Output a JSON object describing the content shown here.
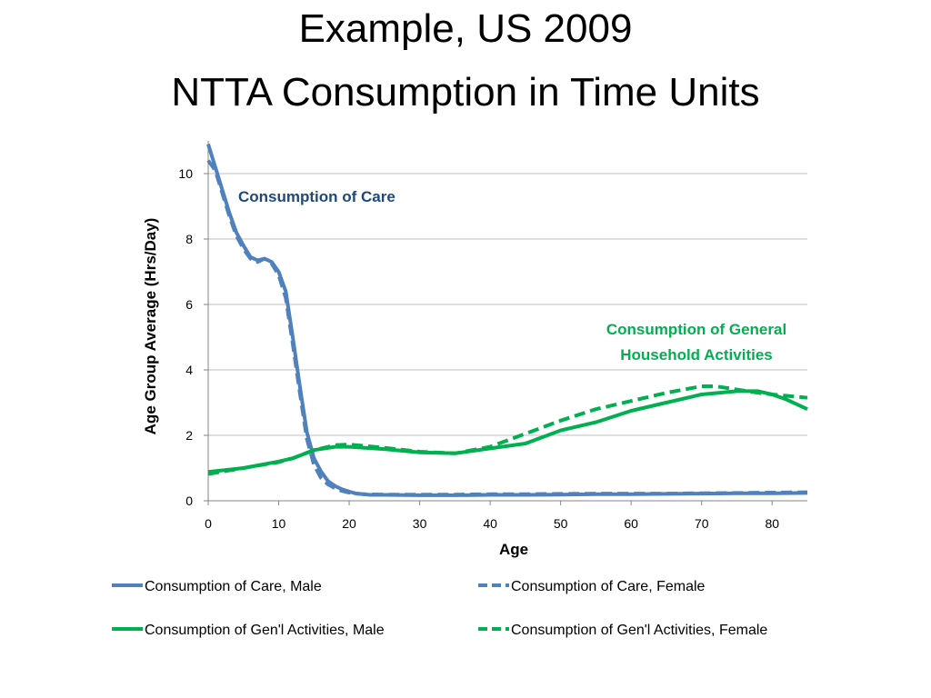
{
  "slide": {
    "title_line1": "Example, US 2009",
    "title_line2": "NTTA Consumption in Time Units"
  },
  "colors": {
    "care": "#4f81bd",
    "general": "#00b050",
    "care_annotation": "#1f497d",
    "general_annotation": "#00b050",
    "grid": "#bfbfbf"
  },
  "chart_data": {
    "type": "line",
    "xlabel": "Age",
    "ylabel": "Age Group Average (Hrs/Day)",
    "xlim": [
      0,
      85
    ],
    "ylim": [
      0,
      11
    ],
    "x_ticks": [
      0,
      10,
      20,
      30,
      40,
      50,
      60,
      70,
      80
    ],
    "y_ticks": [
      0,
      2,
      4,
      6,
      8,
      10
    ],
    "grid": "horizontal",
    "legend_position": "bottom",
    "annotations": [
      {
        "text": "Consumption of Care",
        "color": "care_annotation"
      },
      {
        "text": "Consumption of General",
        "color": "general_annotation"
      },
      {
        "text": "Household Activities",
        "color": "general_annotation"
      }
    ],
    "series": [
      {
        "name": "Consumption of Care, Male",
        "style": "solid",
        "color": "care",
        "points": [
          [
            0,
            10.9
          ],
          [
            1,
            10.2
          ],
          [
            2,
            9.5
          ],
          [
            3,
            8.8
          ],
          [
            4,
            8.2
          ],
          [
            5,
            7.8
          ],
          [
            6,
            7.45
          ],
          [
            7,
            7.35
          ],
          [
            8,
            7.4
          ],
          [
            9,
            7.3
          ],
          [
            10,
            7.0
          ],
          [
            11,
            6.4
          ],
          [
            12,
            5.0
          ],
          [
            13,
            3.5
          ],
          [
            14,
            2.1
          ],
          [
            15,
            1.3
          ],
          [
            16,
            0.9
          ],
          [
            17,
            0.6
          ],
          [
            18,
            0.45
          ],
          [
            19,
            0.35
          ],
          [
            20,
            0.28
          ],
          [
            21,
            0.22
          ],
          [
            22,
            0.2
          ],
          [
            23,
            0.18
          ],
          [
            25,
            0.18
          ],
          [
            30,
            0.17
          ],
          [
            35,
            0.17
          ],
          [
            40,
            0.18
          ],
          [
            45,
            0.18
          ],
          [
            50,
            0.19
          ],
          [
            55,
            0.2
          ],
          [
            60,
            0.2
          ],
          [
            65,
            0.21
          ],
          [
            70,
            0.22
          ],
          [
            75,
            0.23
          ],
          [
            80,
            0.23
          ],
          [
            85,
            0.24
          ]
        ]
      },
      {
        "name": "Consumption of Care, Female",
        "style": "dashed",
        "color": "care",
        "points": [
          [
            0,
            10.4
          ],
          [
            1,
            10.1
          ],
          [
            2,
            9.4
          ],
          [
            3,
            8.7
          ],
          [
            4,
            8.1
          ],
          [
            5,
            7.7
          ],
          [
            6,
            7.4
          ],
          [
            7,
            7.3
          ],
          [
            8,
            7.4
          ],
          [
            9,
            7.25
          ],
          [
            10,
            6.9
          ],
          [
            11,
            6.2
          ],
          [
            12,
            4.8
          ],
          [
            13,
            3.3
          ],
          [
            14,
            1.9
          ],
          [
            15,
            1.1
          ],
          [
            16,
            0.7
          ],
          [
            17,
            0.5
          ],
          [
            18,
            0.38
          ],
          [
            19,
            0.3
          ],
          [
            20,
            0.25
          ],
          [
            22,
            0.2
          ],
          [
            25,
            0.19
          ],
          [
            30,
            0.19
          ],
          [
            35,
            0.19
          ],
          [
            40,
            0.2
          ],
          [
            45,
            0.2
          ],
          [
            50,
            0.21
          ],
          [
            55,
            0.22
          ],
          [
            60,
            0.22
          ],
          [
            65,
            0.22
          ],
          [
            70,
            0.23
          ],
          [
            75,
            0.24
          ],
          [
            80,
            0.25
          ],
          [
            85,
            0.26
          ]
        ]
      },
      {
        "name": "Consumption of Gen'l Activities, Male",
        "style": "solid",
        "color": "general",
        "points": [
          [
            0,
            0.88
          ],
          [
            5,
            1.0
          ],
          [
            10,
            1.2
          ],
          [
            12,
            1.3
          ],
          [
            15,
            1.55
          ],
          [
            18,
            1.65
          ],
          [
            20,
            1.65
          ],
          [
            25,
            1.58
          ],
          [
            30,
            1.48
          ],
          [
            35,
            1.45
          ],
          [
            40,
            1.6
          ],
          [
            45,
            1.75
          ],
          [
            50,
            2.15
          ],
          [
            55,
            2.4
          ],
          [
            60,
            2.75
          ],
          [
            65,
            3.0
          ],
          [
            70,
            3.25
          ],
          [
            75,
            3.35
          ],
          [
            78,
            3.35
          ],
          [
            80,
            3.25
          ],
          [
            82,
            3.1
          ],
          [
            85,
            2.8
          ]
        ]
      },
      {
        "name": "Consumption of Gen'l Activities, Female",
        "style": "dashed",
        "color": "general",
        "points": [
          [
            0,
            0.82
          ],
          [
            5,
            1.0
          ],
          [
            10,
            1.18
          ],
          [
            12,
            1.3
          ],
          [
            15,
            1.55
          ],
          [
            18,
            1.7
          ],
          [
            20,
            1.72
          ],
          [
            25,
            1.62
          ],
          [
            30,
            1.5
          ],
          [
            35,
            1.45
          ],
          [
            40,
            1.65
          ],
          [
            45,
            2.05
          ],
          [
            50,
            2.45
          ],
          [
            55,
            2.8
          ],
          [
            60,
            3.05
          ],
          [
            65,
            3.3
          ],
          [
            70,
            3.5
          ],
          [
            72,
            3.5
          ],
          [
            75,
            3.4
          ],
          [
            78,
            3.3
          ],
          [
            80,
            3.25
          ],
          [
            85,
            3.15
          ]
        ]
      }
    ]
  }
}
